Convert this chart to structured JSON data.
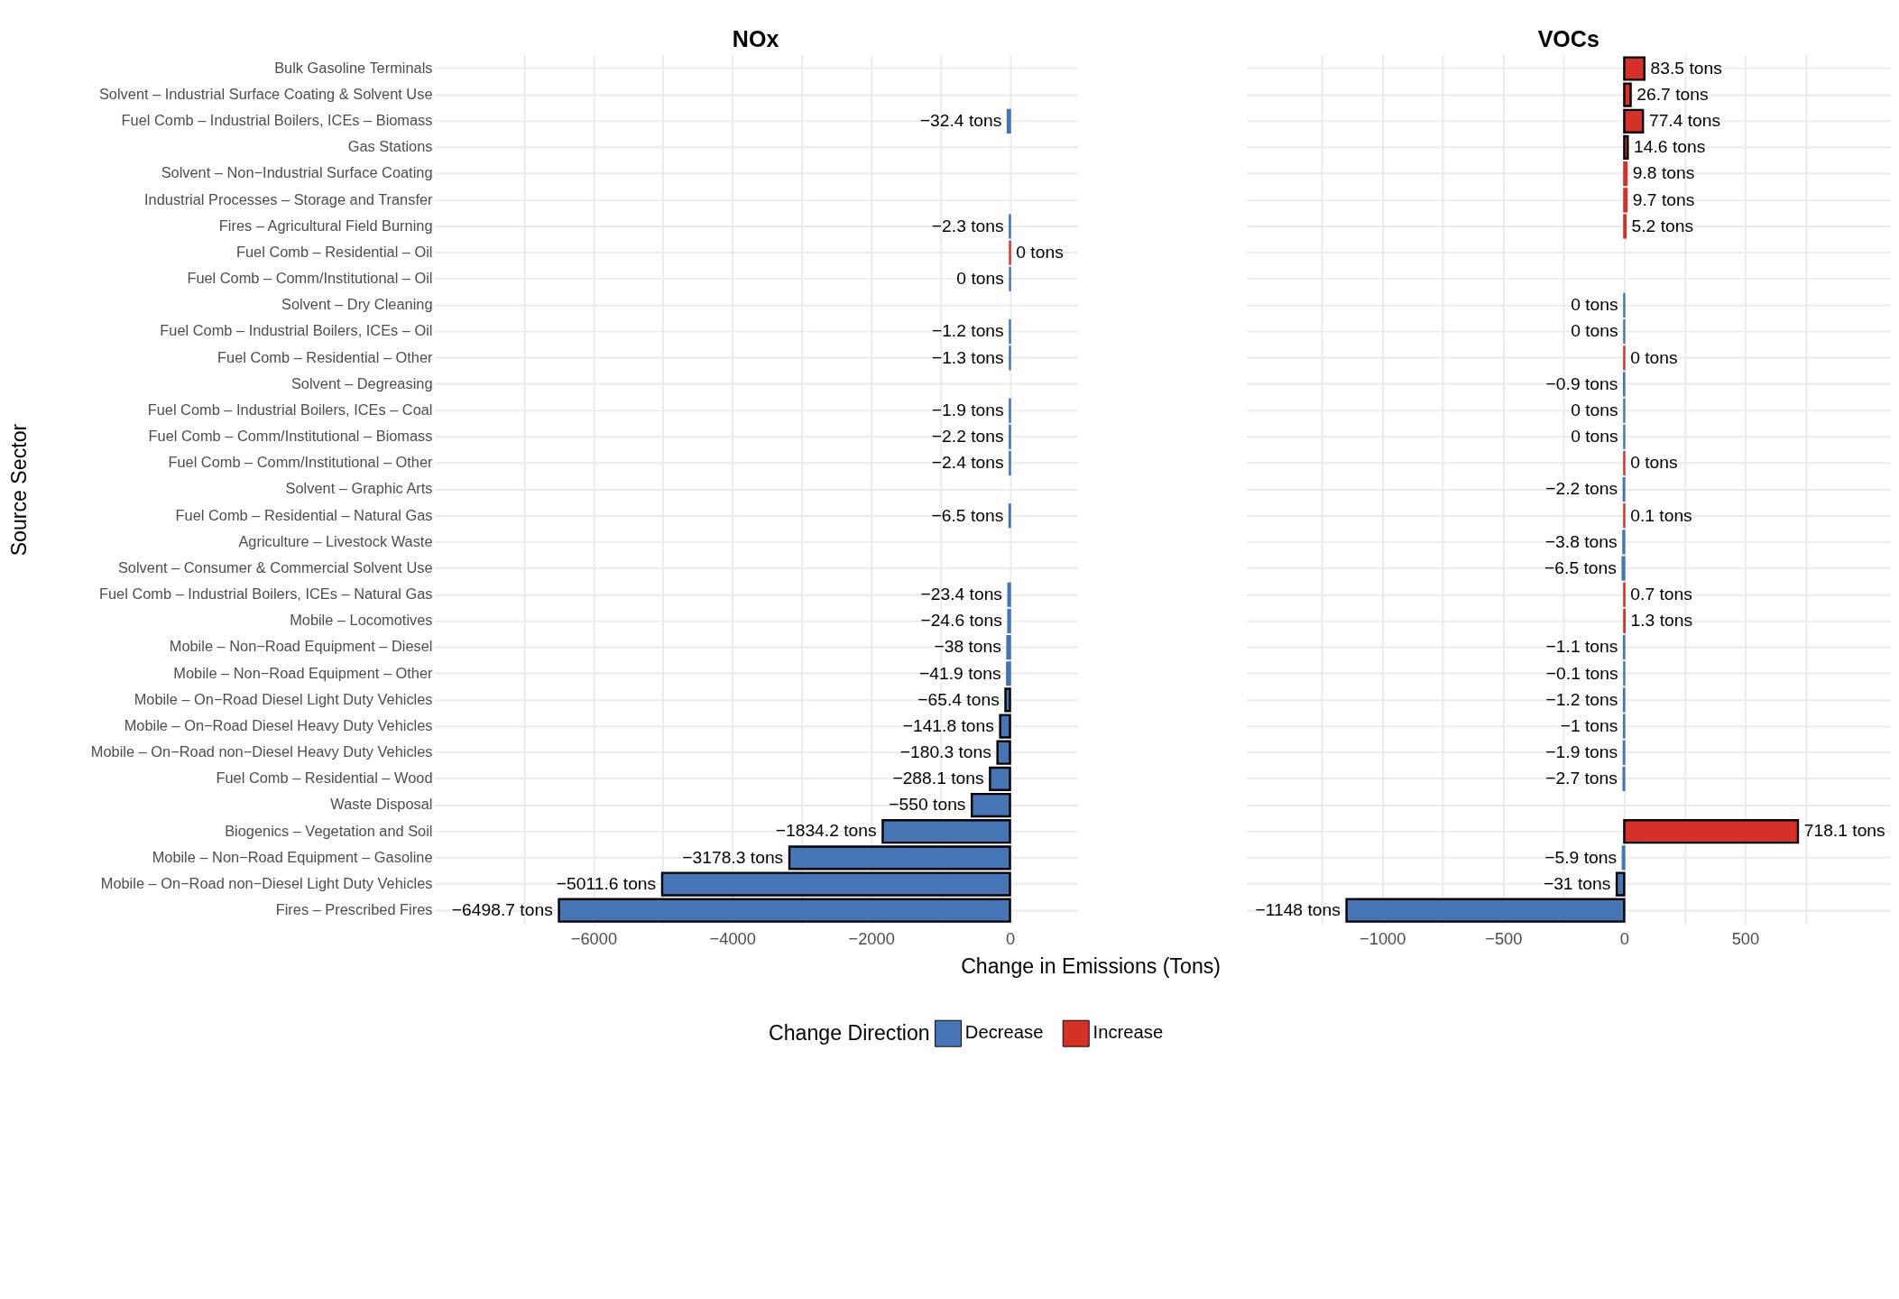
{
  "chart_data": [
    {
      "type": "bar",
      "orientation": "horizontal",
      "title": "NOx",
      "ylabel": "Source Sector",
      "xlabel": "Change in Emissions (Tons)",
      "legend": "bottom",
      "legend_title": "Change Direction",
      "grid": true,
      "categories": [
        "Bulk Gasoline Terminals",
        "Solvent – Industrial Surface Coating & Solvent Use",
        "Fuel Comb – Industrial Boilers, ICEs – Biomass",
        "Gas Stations",
        "Solvent – Non−Industrial Surface Coating",
        "Industrial Processes – Storage and Transfer",
        "Fires – Agricultural Field Burning",
        "Fuel Comb – Residential – Oil",
        "Fuel Comb – Comm/Institutional – Oil",
        "Solvent – Dry Cleaning",
        "Fuel Comb – Industrial Boilers, ICEs – Oil",
        "Fuel Comb – Residential – Other",
        "Solvent – Degreasing",
        "Fuel Comb – Industrial Boilers, ICEs – Coal",
        "Fuel Comb – Comm/Institutional – Biomass",
        "Fuel Comb – Comm/Institutional – Other",
        "Solvent – Graphic Arts",
        "Fuel Comb – Residential – Natural Gas",
        "Agriculture – Livestock Waste",
        "Solvent – Consumer & Commercial Solvent Use",
        "Fuel Comb – Industrial Boilers, ICEs – Natural Gas",
        "Mobile – Locomotives",
        "Mobile – Non−Road Equipment – Diesel",
        "Mobile – Non−Road Equipment – Other",
        "Mobile – On−Road Diesel Light Duty Vehicles",
        "Mobile – On−Road Diesel Heavy Duty Vehicles",
        "Mobile – On−Road non−Diesel Heavy Duty Vehicles",
        "Fuel Comb – Residential – Wood",
        "Waste Disposal",
        "Biogenics – Vegetation and Soil",
        "Mobile – Non−Road Equipment – Gasoline",
        "Mobile – On−Road non−Diesel Light Duty Vehicles",
        "Fires – Prescribed Fires"
      ],
      "series": [
        {
          "name": "Decrease",
          "color": "#4575b4",
          "values": [
            null,
            null,
            -32.4,
            null,
            null,
            null,
            -2.3,
            null,
            -0.04,
            null,
            -1.2,
            -1.3,
            null,
            -1.9,
            -2.2,
            -2.4,
            null,
            -6.5,
            null,
            null,
            -23.4,
            -24.6,
            -38,
            -41.9,
            -65.4,
            -141.8,
            -180.3,
            -288.1,
            -550,
            -1834.2,
            -3178.3,
            -5011.6,
            -6498.7
          ],
          "value_labels": [
            null,
            null,
            "−32.4 tons",
            null,
            null,
            null,
            "−2.3 tons",
            null,
            "0 tons",
            null,
            "−1.2 tons",
            "−1.3 tons",
            null,
            "−1.9 tons",
            "−2.2 tons",
            "−2.4 tons",
            null,
            "−6.5 tons",
            null,
            null,
            "−23.4 tons",
            "−24.6 tons",
            "−38 tons",
            "−41.9 tons",
            "−65.4 tons",
            "−141.8 tons",
            "−180.3 tons",
            "−288.1 tons",
            "−550 tons",
            "−1834.2 tons",
            "−3178.3 tons",
            "−5011.6 tons",
            "−6498.7 tons"
          ]
        },
        {
          "name": "Increase",
          "color": "#d73027",
          "values": [
            null,
            null,
            null,
            null,
            null,
            null,
            null,
            0.04,
            null,
            null,
            null,
            null,
            null,
            null,
            null,
            null,
            null,
            null,
            null,
            null,
            null,
            null,
            null,
            null,
            null,
            null,
            null,
            null,
            null,
            null,
            null,
            null,
            null
          ],
          "value_labels": [
            null,
            null,
            null,
            null,
            null,
            null,
            null,
            "0 tons",
            null,
            null,
            null,
            null,
            null,
            null,
            null,
            null,
            null,
            null,
            null,
            null,
            null,
            null,
            null,
            null,
            null,
            null,
            null,
            null,
            null,
            null,
            null,
            null,
            null
          ]
        }
      ],
      "xlim": [
        -8300,
        970
      ],
      "xticks": [
        {
          "value": -7000,
          "label": null
        },
        -6000,
        {
          "value": -5000,
          "label": null
        },
        -4000,
        {
          "value": -3000,
          "label": null
        },
        -2000,
        {
          "value": -1000,
          "label": null
        },
        0
      ]
    },
    {
      "type": "bar",
      "orientation": "horizontal",
      "title": "VOCs",
      "grid": true,
      "tick_labels": "x",
      "categories": [
        "Bulk Gasoline Terminals",
        "Solvent – Industrial Surface Coating & Solvent Use",
        "Fuel Comb – Industrial Boilers, ICEs – Biomass",
        "Gas Stations",
        "Solvent – Non−Industrial Surface Coating",
        "Industrial Processes – Storage and Transfer",
        "Fires – Agricultural Field Burning",
        "Fuel Comb – Residential – Oil",
        "Fuel Comb – Comm/Institutional – Oil",
        "Solvent – Dry Cleaning",
        "Fuel Comb – Industrial Boilers, ICEs – Oil",
        "Fuel Comb – Residential – Other",
        "Solvent – Degreasing",
        "Fuel Comb – Industrial Boilers, ICEs – Coal",
        "Fuel Comb – Comm/Institutional – Biomass",
        "Fuel Comb – Comm/Institutional – Other",
        "Solvent – Graphic Arts",
        "Fuel Comb – Residential – Natural Gas",
        "Agriculture – Livestock Waste",
        "Solvent – Consumer & Commercial Solvent Use",
        "Fuel Comb – Industrial Boilers, ICEs – Natural Gas",
        "Mobile – Locomotives",
        "Mobile – Non−Road Equipment – Diesel",
        "Mobile – Non−Road Equipment – Other",
        "Mobile – On−Road Diesel Light Duty Vehicles",
        "Mobile – On−Road Diesel Heavy Duty Vehicles",
        "Mobile – On−Road non−Diesel Heavy Duty Vehicles",
        "Fuel Comb – Residential – Wood",
        "Waste Disposal",
        "Biogenics – Vegetation and Soil",
        "Mobile – Non−Road Equipment – Gasoline",
        "Mobile – On−Road non−Diesel Light Duty Vehicles",
        "Fires – Prescribed Fires"
      ],
      "series": [
        {
          "name": "Decrease",
          "color": "#4575b4",
          "values": [
            null,
            null,
            null,
            null,
            null,
            null,
            null,
            null,
            null,
            -0.04,
            -0.04,
            null,
            -0.9,
            -0.04,
            -0.04,
            null,
            -2.2,
            null,
            -3.8,
            -6.5,
            null,
            null,
            -1.1,
            -0.1,
            -1.2,
            -1,
            -1.9,
            -2.7,
            null,
            null,
            -5.9,
            -31,
            -1148
          ],
          "value_labels": [
            null,
            null,
            null,
            null,
            null,
            null,
            null,
            null,
            null,
            "0 tons",
            "0 tons",
            null,
            "−0.9 tons",
            "0 tons",
            "0 tons",
            null,
            "−2.2 tons",
            null,
            "−3.8 tons",
            "−6.5 tons",
            null,
            null,
            "−1.1 tons",
            "−0.1 tons",
            "−1.2 tons",
            "−1 tons",
            "−1.9 tons",
            "−2.7 tons",
            null,
            null,
            "−5.9 tons",
            "−31 tons",
            "−1148 tons"
          ]
        },
        {
          "name": "Increase",
          "color": "#d73027",
          "values": [
            83.5,
            26.7,
            77.4,
            14.6,
            9.8,
            9.7,
            5.2,
            null,
            null,
            null,
            null,
            0.04,
            null,
            null,
            null,
            0.04,
            null,
            0.1,
            null,
            null,
            0.7,
            1.3,
            null,
            null,
            null,
            null,
            null,
            null,
            null,
            718.1,
            null,
            null,
            null
          ],
          "value_labels": [
            "83.5 tons",
            "26.7 tons",
            "77.4 tons",
            "14.6 tons",
            "9.8 tons",
            "9.7 tons",
            "5.2 tons",
            null,
            null,
            null,
            null,
            "0 tons",
            null,
            null,
            null,
            "0 tons",
            null,
            "0.1 tons",
            null,
            null,
            "0.7 tons",
            "1.3 tons",
            null,
            null,
            null,
            null,
            null,
            null,
            null,
            "718.1 tons",
            null,
            null,
            null
          ]
        }
      ],
      "xlim": [
        -1560,
        1100
      ],
      "xticks": [
        {
          "value": -1250,
          "label": null
        },
        -1000,
        {
          "value": -750,
          "label": null
        },
        -500,
        {
          "value": -250,
          "label": null
        },
        0,
        {
          "value": 250,
          "label": null
        },
        500,
        {
          "value": 750,
          "label": null
        }
      ]
    }
  ]
}
